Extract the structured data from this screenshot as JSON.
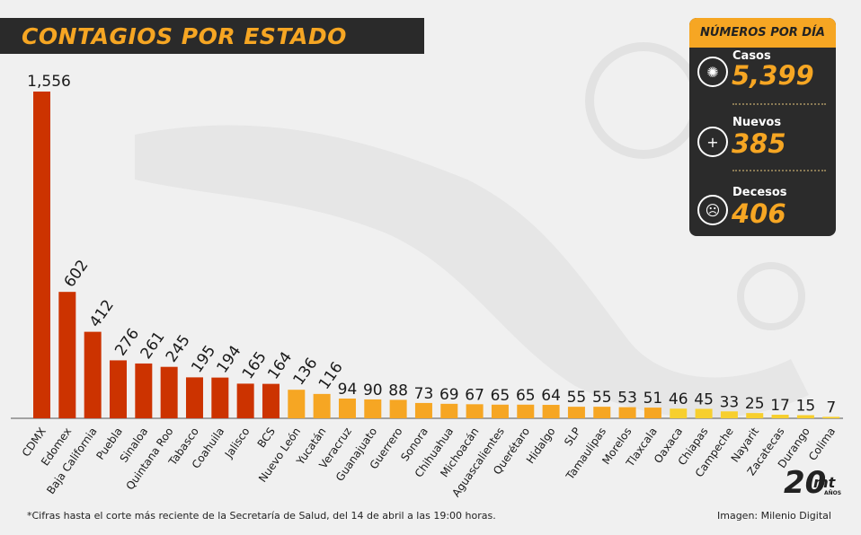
{
  "title": "CONTAGIOS POR ESTADO",
  "stats": {
    "header": "NÚMEROS POR DÍA",
    "items": [
      {
        "label": "Casos",
        "value": "5,399",
        "icon": "virus-icon"
      },
      {
        "label": "Nuevos",
        "value": "385",
        "icon": "plus-icon"
      },
      {
        "label": "Decesos",
        "value": "406",
        "icon": "skull-icon"
      }
    ]
  },
  "footnote": "*Cifras hasta el corte más reciente de la Secretaría de Salud, del 14 de abril a las 19:00 horas.",
  "credit": "Imagen: Milenio Digital",
  "logo": {
    "number": "20",
    "brand": "mt",
    "sub": "AÑOS"
  },
  "colors": {
    "red": "#cc3300",
    "orange": "#f6a623",
    "yellow": "#f7cf2e",
    "dark": "#2a2a2a"
  },
  "chart_data": {
    "type": "bar",
    "categories": [
      "CDMX",
      "Edomex",
      "Baja California",
      "Puebla",
      "Sinaloa",
      "Quintana Roo",
      "Tabasco",
      "Coahuila",
      "Jalisco",
      "BCS",
      "Nuevo León",
      "Yucatán",
      "Veracruz",
      "Guanajuato",
      "Guerrero",
      "Sonora",
      "Chihuahua",
      "Michoacán",
      "Aguascalientes",
      "Querétaro",
      "Hidalgo",
      "SLP",
      "Tamaulipas",
      "Morelos",
      "Tlaxcala",
      "Oaxaca",
      "Chiapas",
      "Campeche",
      "Nayarit",
      "Zacatecas",
      "Durango",
      "Colima"
    ],
    "values": [
      1556,
      602,
      412,
      276,
      261,
      245,
      195,
      194,
      165,
      164,
      136,
      116,
      94,
      90,
      88,
      73,
      69,
      67,
      65,
      65,
      64,
      55,
      55,
      53,
      51,
      46,
      45,
      33,
      25,
      17,
      15,
      7
    ],
    "value_labels": [
      "1,556",
      "602",
      "412",
      "276",
      "261",
      "245",
      "195",
      "194",
      "165",
      "164",
      "136",
      "116",
      "94",
      "90",
      "88",
      "73",
      "69",
      "67",
      "65",
      "65",
      "64",
      "55",
      "55",
      "53",
      "51",
      "46",
      "45",
      "33",
      "25",
      "17",
      "15",
      "7"
    ],
    "bar_colors": [
      "#cc3300",
      "#cc3300",
      "#cc3300",
      "#cc3300",
      "#cc3300",
      "#cc3300",
      "#cc3300",
      "#cc3300",
      "#cc3300",
      "#cc3300",
      "#f6a623",
      "#f6a623",
      "#f6a623",
      "#f6a623",
      "#f6a623",
      "#f6a623",
      "#f6a623",
      "#f6a623",
      "#f6a623",
      "#f6a623",
      "#f6a623",
      "#f6a623",
      "#f6a623",
      "#f6a623",
      "#f6a623",
      "#f7cf2e",
      "#f7cf2e",
      "#f7cf2e",
      "#f7cf2e",
      "#f7cf2e",
      "#f7cf2e",
      "#f7cf2e"
    ],
    "ylim": [
      0,
      1556
    ],
    "grid": false
  }
}
